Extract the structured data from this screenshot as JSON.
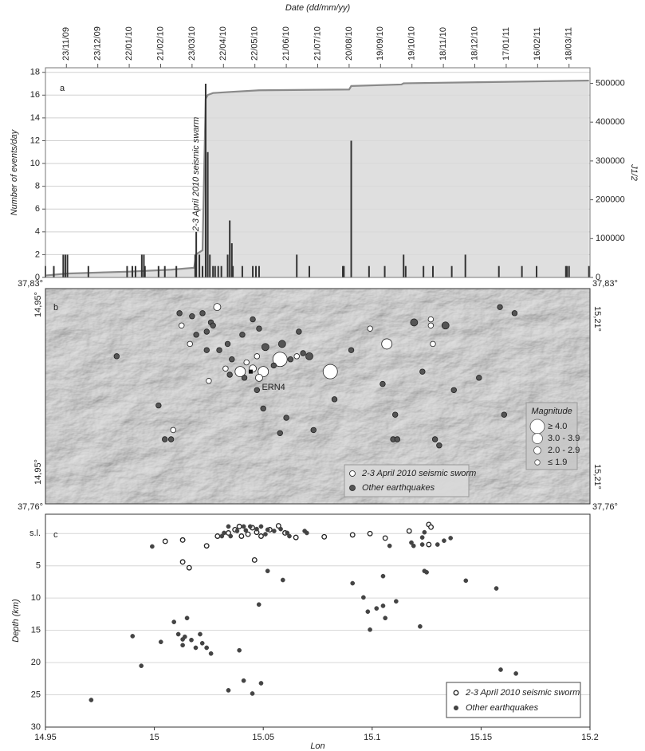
{
  "chart_data": [
    {
      "type": "bar",
      "panel_label": "a",
      "xlabel": "Date (dd/mm/yy)",
      "ylabel": "Number of events/day",
      "y2label": "J1/2",
      "annotation": "2-3 April 2010 seismic swarm",
      "xlim": [
        -20,
        500
      ],
      "xticks": [
        {
          "value": 0,
          "label": "23/11/09"
        },
        {
          "value": 30,
          "label": "23/12/09"
        },
        {
          "value": 60,
          "label": "22/01/10"
        },
        {
          "value": 90,
          "label": "21/02/10"
        },
        {
          "value": 120,
          "label": "23/03/10"
        },
        {
          "value": 150,
          "label": "22/04/10"
        },
        {
          "value": 180,
          "label": "22/05/10"
        },
        {
          "value": 210,
          "label": "21/06/10"
        },
        {
          "value": 240,
          "label": "21/07/10"
        },
        {
          "value": 270,
          "label": "20/08/10"
        },
        {
          "value": 300,
          "label": "19/09/10"
        },
        {
          "value": 330,
          "label": "19/10/10"
        },
        {
          "value": 360,
          "label": "18/11/10"
        },
        {
          "value": 390,
          "label": "18/12/10"
        },
        {
          "value": 420,
          "label": "17/01/11"
        },
        {
          "value": 450,
          "label": "16/02/11"
        },
        {
          "value": 480,
          "label": "18/03/11"
        }
      ],
      "ylim": [
        0,
        18.4
      ],
      "yticks": [
        0,
        2,
        4,
        6,
        8,
        10,
        12,
        14,
        16,
        18
      ],
      "y2lim": [
        0,
        540000
      ],
      "y2ticks": [
        0,
        100000,
        200000,
        300000,
        400000,
        500000
      ],
      "grid": true,
      "series": [
        {
          "type": "bar",
          "color": "#333333",
          "x": [
            -20,
            -12,
            -3,
            -1,
            1,
            21,
            58,
            63,
            66,
            72,
            74,
            75,
            88,
            94,
            105,
            123,
            124,
            127,
            130,
            133,
            135,
            137,
            140,
            142,
            145,
            148,
            154,
            156,
            158,
            159,
            168,
            178,
            181,
            184,
            220,
            232,
            264,
            265,
            272,
            289,
            304,
            322,
            324,
            341,
            350,
            368,
            381,
            413,
            435,
            449,
            477,
            478,
            480,
            499
          ],
          "values": [
            1,
            1,
            2,
            2,
            2,
            1,
            1,
            1,
            1,
            2,
            2,
            1,
            1,
            1,
            1,
            2,
            4,
            2,
            1,
            17,
            11,
            2,
            1,
            1,
            1,
            1,
            2,
            5,
            3,
            1,
            1,
            1,
            1,
            1,
            2,
            1,
            1,
            1,
            12,
            1,
            1,
            2,
            1,
            1,
            1,
            1,
            2,
            1,
            1,
            1,
            1,
            1,
            1,
            1
          ]
        },
        {
          "type": "line",
          "axis": "y2",
          "color": "#8a8a8a",
          "fill": "#d9d9d9",
          "x": [
            -20,
            0,
            60,
            100,
            122,
            124,
            130,
            133,
            135,
            140,
            158,
            184,
            270,
            272,
            320,
            322,
            400,
            499
          ],
          "values": [
            5000,
            10000,
            15000,
            20000,
            25000,
            60000,
            70000,
            460000,
            470000,
            475000,
            478000,
            482000,
            484000,
            493000,
            497000,
            500000,
            503000,
            507000
          ]
        }
      ]
    },
    {
      "type": "map",
      "panel_label": "b",
      "lonlim": [
        14.95,
        15.21
      ],
      "latlim": [
        37.76,
        37.83
      ],
      "lat_labels": [
        "37,83°",
        "37,76°"
      ],
      "lon_labels": [
        "14,95°",
        "15,21°"
      ],
      "station": {
        "name": "ERN4",
        "lon": 15.048,
        "lat": 37.803
      },
      "size_legend": {
        "title": "Magnitude",
        "classes": [
          {
            "value": 4.0,
            "label": "≥ 4.0"
          },
          {
            "value": 3.0,
            "label": "3.0 - 3.9"
          },
          {
            "value": 2.0,
            "label": "2.0 - 2.9"
          },
          {
            "value": 1.9,
            "label": "≤ 1.9"
          }
        ]
      },
      "series": [
        {
          "name": "2-3 April 2010 seismic sworm",
          "color": "#ffffff",
          "lon": [
            15.032,
            15.015,
            15.019,
            15.043,
            15.054,
            15.062,
            15.086,
            15.113,
            15.105,
            15.134,
            15.134,
            15.135,
            15.051,
            15.049,
            15.036,
            15.028,
            15.011,
            15.052,
            15.07,
            15.046
          ],
          "lat": [
            37.824,
            37.818,
            37.812,
            37.803,
            37.803,
            37.807,
            37.803,
            37.812,
            37.817,
            37.82,
            37.818,
            37.812,
            37.808,
            37.804,
            37.804,
            37.8,
            37.784,
            37.801,
            37.808,
            37.806
          ],
          "magnitude": [
            2.5,
            1.5,
            1.5,
            3.5,
            3.0,
            4.0,
            4.3,
            3.2,
            1.5,
            1.5,
            1.5,
            1.5,
            1.5,
            2.0,
            1.5,
            1.5,
            1.5,
            2.0,
            1.5,
            1.5
          ]
        },
        {
          "name": "Other earthquakes",
          "color": "#555555",
          "lon": [
            14.984,
            15.014,
            15.02,
            15.025,
            15.029,
            15.03,
            15.027,
            15.022,
            15.027,
            15.033,
            15.037,
            15.039,
            15.044,
            15.049,
            15.052,
            15.055,
            15.059,
            15.063,
            15.067,
            15.073,
            15.076,
            15.038,
            15.045,
            15.051,
            15.054,
            15.065,
            15.062,
            15.078,
            15.088,
            15.096,
            15.111,
            15.117,
            15.116,
            15.118,
            15.126,
            15.141,
            15.13,
            15.145,
            15.136,
            15.138,
            15.167,
            15.174,
            15.169,
            15.004,
            15.007,
            15.01,
            15.071,
            15.157
          ],
          "lat": [
            37.808,
            37.822,
            37.821,
            37.822,
            37.819,
            37.818,
            37.816,
            37.815,
            37.81,
            37.81,
            37.812,
            37.807,
            37.815,
            37.82,
            37.817,
            37.811,
            37.805,
            37.812,
            37.807,
            37.809,
            37.808,
            37.802,
            37.801,
            37.797,
            37.791,
            37.788,
            37.783,
            37.784,
            37.794,
            37.81,
            37.799,
            37.789,
            37.781,
            37.781,
            37.819,
            37.818,
            37.803,
            37.797,
            37.781,
            37.779,
            37.824,
            37.822,
            37.789,
            37.792,
            37.781,
            37.781,
            37.816,
            37.801
          ],
          "magnitude": [
            1.5,
            1.5,
            1.5,
            1.5,
            1.5,
            1.5,
            1.5,
            1.5,
            1.5,
            1.5,
            1.5,
            1.5,
            1.5,
            1.5,
            1.5,
            2.0,
            1.5,
            2.0,
            1.5,
            1.5,
            2.5,
            1.5,
            1.5,
            1.5,
            1.5,
            1.5,
            1.5,
            1.5,
            1.5,
            1.5,
            1.5,
            1.5,
            1.5,
            1.5,
            2.5,
            2.5,
            1.5,
            1.5,
            1.5,
            1.5,
            1.5,
            1.5,
            1.5,
            1.5,
            1.5,
            1.5,
            1.5,
            1.5
          ]
        }
      ]
    },
    {
      "type": "scatter",
      "panel_label": "c",
      "xlabel": "Lon",
      "ylabel": "Depth (km)",
      "xlim": [
        14.95,
        15.2
      ],
      "xticks": [
        14.95,
        15,
        15.05,
        15.1,
        15.15,
        15.2
      ],
      "ylim": [
        -3,
        30
      ],
      "y_inverted": true,
      "yticks": [
        {
          "value": 0,
          "label": "s.l."
        },
        5,
        10,
        15,
        20,
        25,
        30
      ],
      "grid": true,
      "legend": "lower right",
      "series": [
        {
          "name": "2-3 April 2010 seismic sworm",
          "marker": "open",
          "color": "#222222",
          "x": [
            15.005,
            15.013,
            15.024,
            15.029,
            15.034,
            15.037,
            15.039,
            15.04,
            15.043,
            15.045,
            15.047,
            15.049,
            15.053,
            15.057,
            15.06,
            15.065,
            15.078,
            15.091,
            15.099,
            15.106,
            15.117,
            15.126,
            15.127,
            15.126,
            15.013,
            15.016,
            15.046
          ],
          "values": [
            1.2,
            1.0,
            1.9,
            0.4,
            -0.1,
            -0.6,
            -1.1,
            0.4,
            0.1,
            -0.9,
            -0.2,
            0.4,
            -0.6,
            -1.2,
            -0.1,
            0.6,
            0.5,
            0.2,
            0,
            0.7,
            -0.4,
            -1.4,
            -1.0,
            1.7,
            4.4,
            5.3,
            4.1
          ]
        },
        {
          "name": "Other earthquakes",
          "marker": "filled",
          "color": "#444444",
          "x": [
            14.999,
            15.031,
            15.032,
            15.034,
            15.035,
            15.038,
            15.041,
            15.042,
            15.044,
            15.047,
            15.049,
            15.051,
            15.052,
            15.055,
            15.058,
            15.061,
            15.062,
            15.069,
            15.07,
            15.052,
            15.059,
            15.048,
            15.009,
            15.015,
            15.011,
            15.013,
            15.014,
            15.017,
            15.021,
            15.022,
            15.024,
            15.026,
            15.019,
            15.013,
            15.003,
            14.99,
            14.994,
            15.039,
            15.041,
            15.034,
            15.045,
            15.049,
            14.971,
            15.091,
            15.096,
            15.098,
            15.102,
            15.105,
            15.105,
            15.106,
            15.111,
            15.099,
            15.108,
            15.118,
            15.119,
            15.123,
            15.123,
            15.124,
            15.124,
            15.125,
            15.13,
            15.133,
            15.136,
            15.122,
            15.143,
            15.157,
            15.159,
            15.166
          ],
          "values": [
            2.0,
            0.4,
            -0.1,
            -1.1,
            0.4,
            -0.4,
            -1.1,
            -0.5,
            -1.1,
            -0.7,
            -1.1,
            0.1,
            -0.6,
            -0.4,
            -0.7,
            -0.1,
            0.4,
            -0.4,
            -0.1,
            5.8,
            7.2,
            11.0,
            13.7,
            13.1,
            15.6,
            16.4,
            16.0,
            16.5,
            15.6,
            17.0,
            17.7,
            18.6,
            17.7,
            17.3,
            16.8,
            15.9,
            20.5,
            18.1,
            22.8,
            24.3,
            24.8,
            23.2,
            25.8,
            7.7,
            9.9,
            12.1,
            11.6,
            6.6,
            11.2,
            13.1,
            10.5,
            14.9,
            1.9,
            1.4,
            1.9,
            1.7,
            0.6,
            -0.2,
            5.8,
            6.0,
            1.7,
            1.1,
            0.7,
            14.4,
            7.3,
            8.5,
            21.1,
            21.7
          ]
        }
      ]
    }
  ]
}
